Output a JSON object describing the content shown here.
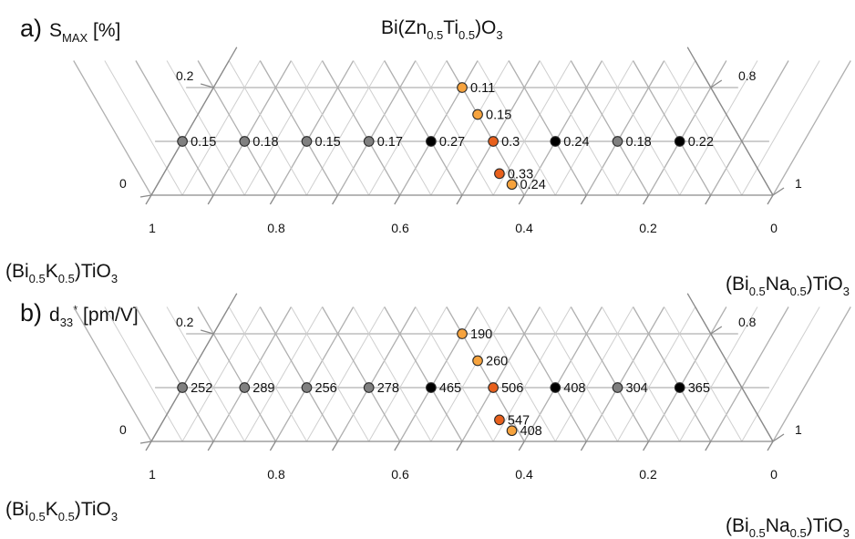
{
  "compositions": {
    "top": {
      "p1": "Bi(Zn",
      "s1": "0.5",
      "p2": "Ti",
      "s2": "0.5",
      "p3": ")O",
      "s3": "3"
    },
    "bkt": {
      "p1": "(Bi",
      "s1": "0.5",
      "p2": "K",
      "s2": "0.5",
      "p3": ")TiO",
      "s3": "3"
    },
    "bnt": {
      "p1": "(Bi",
      "s1": "0.5",
      "p2": "Na",
      "s2": "0.5",
      "p3": ")TiO",
      "s3": "3"
    }
  },
  "colors": {
    "gray": "#808080",
    "black": "#000000",
    "orange": "#e8601c",
    "light_orange": "#f6a33e"
  },
  "panels": [
    {
      "id": "a",
      "label": "a)",
      "quantity": {
        "main": "S",
        "sub": "MAX",
        "unit": " [%]"
      },
      "bottom_ticks": [
        "1",
        "0.8",
        "0.6",
        "0.4",
        "0.2",
        "0"
      ],
      "left_ticks": [
        "0.2",
        "0"
      ],
      "right_ticks": [
        "0.8",
        "1"
      ],
      "points": [
        {
          "bzt": 0.2,
          "bnt": 0.4,
          "color": "light_orange",
          "label": "0.11"
        },
        {
          "bzt": 0.15,
          "bnt": 0.45,
          "color": "light_orange",
          "label": "0.15"
        },
        {
          "bzt": 0.1,
          "bnt": 0.0,
          "color": "gray",
          "label": "0.15"
        },
        {
          "bzt": 0.1,
          "bnt": 0.1,
          "color": "gray",
          "label": "0.18"
        },
        {
          "bzt": 0.1,
          "bnt": 0.2,
          "color": "gray",
          "label": "0.15"
        },
        {
          "bzt": 0.1,
          "bnt": 0.3,
          "color": "gray",
          "label": "0.17"
        },
        {
          "bzt": 0.1,
          "bnt": 0.4,
          "color": "black",
          "label": "0.27"
        },
        {
          "bzt": 0.1,
          "bnt": 0.5,
          "color": "orange",
          "label": "0.3"
        },
        {
          "bzt": 0.1,
          "bnt": 0.6,
          "color": "black",
          "label": "0.24"
        },
        {
          "bzt": 0.1,
          "bnt": 0.7,
          "color": "gray",
          "label": "0.18"
        },
        {
          "bzt": 0.1,
          "bnt": 0.8,
          "color": "black",
          "label": "0.22"
        },
        {
          "bzt": 0.04,
          "bnt": 0.54,
          "color": "orange",
          "label": "0.33"
        },
        {
          "bzt": 0.02,
          "bnt": 0.57,
          "color": "light_orange",
          "label": "0.24"
        }
      ]
    },
    {
      "id": "b",
      "label": "b)",
      "quantity": {
        "main": "d",
        "sub": "33",
        "sup": "*",
        "unit": " [pm/V]"
      },
      "bottom_ticks": [
        "1",
        "0.8",
        "0.6",
        "0.4",
        "0.2",
        "0"
      ],
      "left_ticks": [
        "0.2",
        "0"
      ],
      "right_ticks": [
        "0.8",
        "1"
      ],
      "points": [
        {
          "bzt": 0.2,
          "bnt": 0.4,
          "color": "light_orange",
          "label": "190"
        },
        {
          "bzt": 0.15,
          "bnt": 0.45,
          "color": "light_orange",
          "label": "260"
        },
        {
          "bzt": 0.1,
          "bnt": 0.0,
          "color": "gray",
          "label": "252"
        },
        {
          "bzt": 0.1,
          "bnt": 0.1,
          "color": "gray",
          "label": "289"
        },
        {
          "bzt": 0.1,
          "bnt": 0.2,
          "color": "gray",
          "label": "256"
        },
        {
          "bzt": 0.1,
          "bnt": 0.3,
          "color": "gray",
          "label": "278"
        },
        {
          "bzt": 0.1,
          "bnt": 0.4,
          "color": "black",
          "label": "465"
        },
        {
          "bzt": 0.1,
          "bnt": 0.5,
          "color": "orange",
          "label": "506"
        },
        {
          "bzt": 0.1,
          "bnt": 0.6,
          "color": "black",
          "label": "408"
        },
        {
          "bzt": 0.1,
          "bnt": 0.7,
          "color": "gray",
          "label": "304"
        },
        {
          "bzt": 0.1,
          "bnt": 0.8,
          "color": "black",
          "label": "365"
        },
        {
          "bzt": 0.04,
          "bnt": 0.54,
          "color": "orange",
          "label": "547"
        },
        {
          "bzt": 0.02,
          "bnt": 0.57,
          "color": "light_orange",
          "label": "408"
        }
      ]
    }
  ]
}
